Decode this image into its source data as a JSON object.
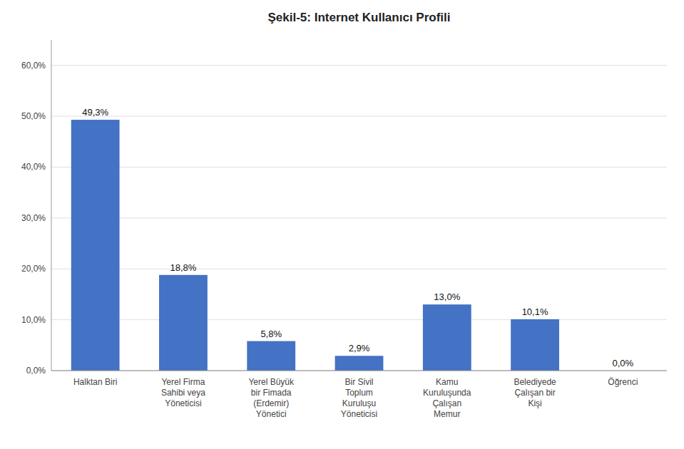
{
  "chart_data": {
    "type": "bar",
    "title": "Şekil-5: Internet Kullanıcı Profili",
    "categories": [
      "Halktan Biri",
      "Yerel Firma\nSahibi veya\nYöneticisi",
      "Yerel Büyük\nbir Fimada\n(Erdemir)\nYönetici",
      "Bir Sivil\nToplum\nKuruluşu\nYöneticisi",
      "Kamu\nKuruluşunda\nÇalışan\nMemur",
      "Belediyede\nÇalışan bir\nKişi",
      "Öğrenci"
    ],
    "values": [
      49.3,
      18.8,
      5.8,
      2.9,
      13.0,
      10.1,
      0.0
    ],
    "value_labels": [
      "49,3%",
      "18,8%",
      "5,8%",
      "2,9%",
      "13,0%",
      "10,1%",
      "0,0%"
    ],
    "data_labels": true,
    "color": "#4472C4",
    "ylim": [
      0,
      65
    ],
    "yticks": [
      {
        "value": 0.0,
        "label": "0,0%"
      },
      {
        "value": 10.0,
        "label": "10,0%"
      },
      {
        "value": 20.0,
        "label": "20,0%"
      },
      {
        "value": 30.0,
        "label": "30,0%"
      },
      {
        "value": 40.0,
        "label": "40,0%"
      },
      {
        "value": 50.0,
        "label": "50,0%"
      },
      {
        "value": 60.0,
        "label": "60,0%"
      }
    ],
    "grid": true
  }
}
